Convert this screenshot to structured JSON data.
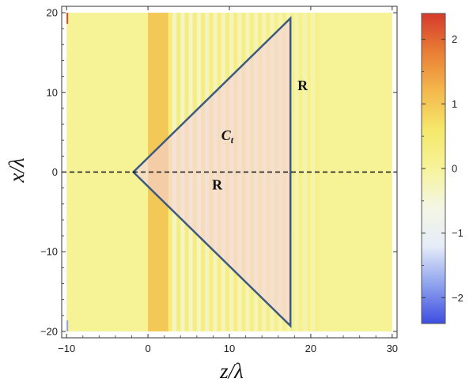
{
  "chart_data": {
    "type": "heatmap",
    "xlabel": "z/λ",
    "ylabel": "x/λ",
    "xlim": [
      -10.6,
      30.6
    ],
    "ylim": [
      -20.8,
      20.8
    ],
    "x_ticks": [
      "−10",
      "0",
      "10",
      "20",
      "30"
    ],
    "x_tick_values": [
      -10,
      0,
      10,
      20,
      30
    ],
    "y_ticks": [
      "20",
      "10",
      "0",
      "−10",
      "−20"
    ],
    "y_tick_values": [
      20,
      10,
      0,
      -10,
      -20
    ],
    "field": {
      "domain_z": [
        -10,
        30
      ],
      "domain_x": [
        -20,
        20
      ],
      "slab": {
        "z_start": 0,
        "z_end": 2.5,
        "value": 1.0
      },
      "stripes": {
        "z_start": 2.5,
        "z_end": 21,
        "period": 1.0,
        "amplitude": 0.35
      },
      "background_value": 0.05
    },
    "triangle": {
      "vertices": [
        [
          -1.8,
          0
        ],
        [
          17.5,
          19.3
        ],
        [
          17.5,
          -19.3
        ]
      ],
      "fill_color": "#f4cfe8",
      "stroke_color": "#3d5a80"
    },
    "dashed_line": {
      "x": 0,
      "z_from": -10.6,
      "z_to": 30.6
    },
    "labels": [
      {
        "text": "R",
        "z": 19.0,
        "x": 10.3,
        "style": "region"
      },
      {
        "text": "C",
        "sub": "t",
        "z": 9.0,
        "x": 4.0,
        "style": "ct"
      },
      {
        "text": "R",
        "z": 8.5,
        "x": -2.2,
        "style": "region"
      }
    ],
    "colorbar": {
      "min": -2.4,
      "max": 2.4,
      "tick_values": [
        2,
        1,
        0,
        -1,
        -2
      ],
      "tick_labels": [
        "2",
        "1",
        "0",
        "−1",
        "−2"
      ],
      "colors": [
        "#3e4de0",
        "#8ea2ee",
        "#e6ecf8",
        "#f4f6e4",
        "#f6f39a",
        "#f5e86a",
        "#f4b84c",
        "#e97e35",
        "#d63a2c"
      ]
    }
  }
}
